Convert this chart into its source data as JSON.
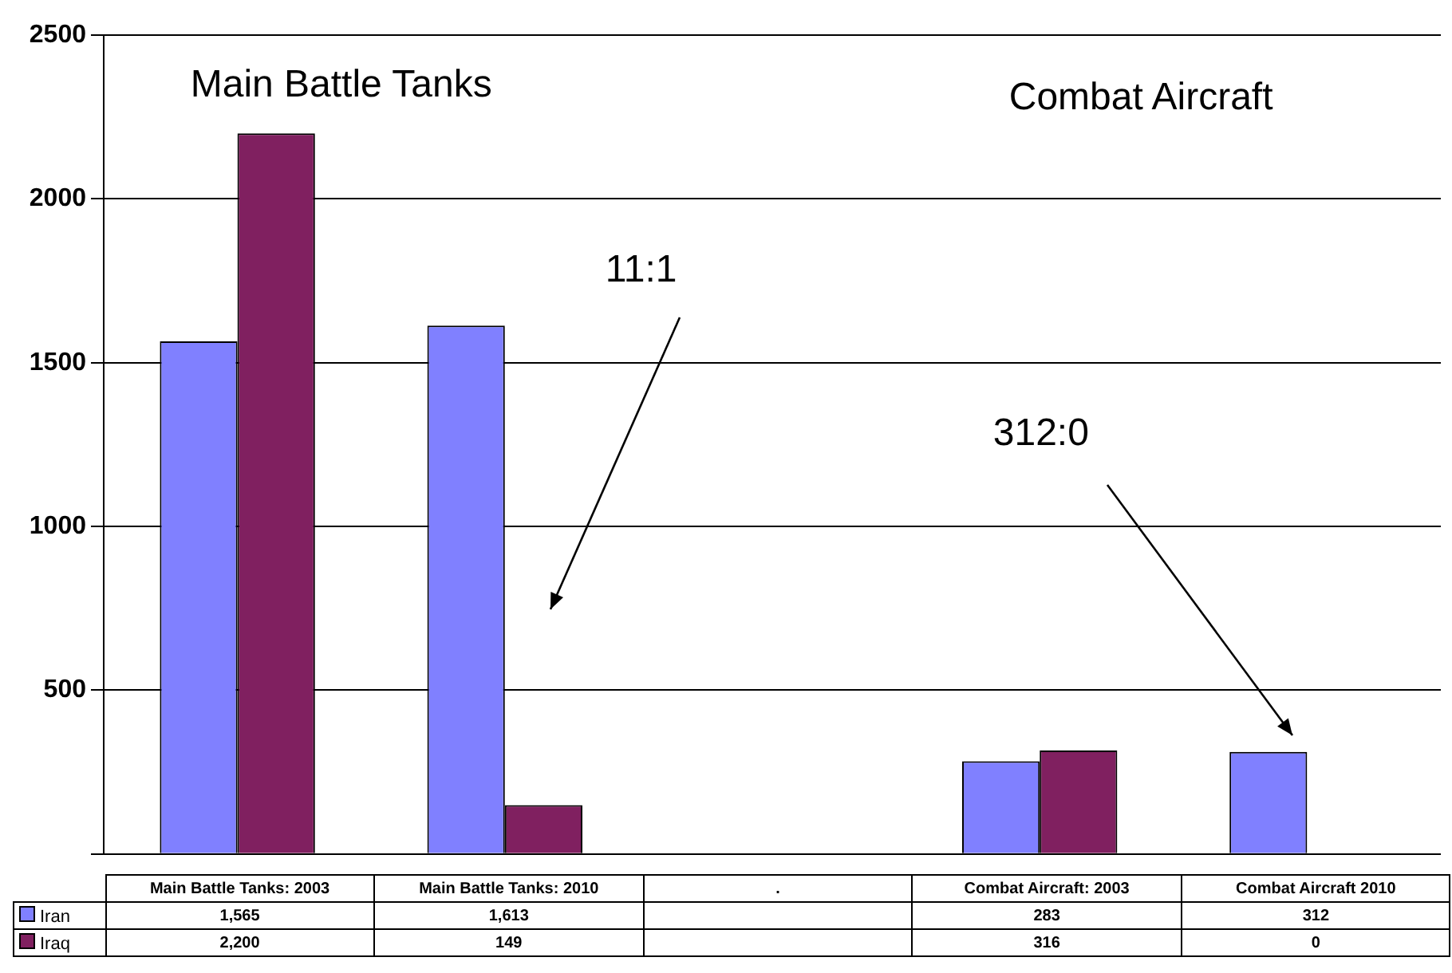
{
  "chart_data": {
    "type": "bar",
    "categories": [
      "Main Battle Tanks: 2003",
      "Main Battle Tanks: 2010",
      ".",
      "Combat Aircraft: 2003",
      "Combat Aircraft 2010"
    ],
    "series": [
      {
        "name": "Iran",
        "color": "#8080ff",
        "values": [
          1565,
          1613,
          null,
          283,
          312
        ],
        "value_labels": [
          "1,565",
          "1,613",
          null,
          "283",
          "312"
        ]
      },
      {
        "name": "Iraq",
        "color": "#802060",
        "values": [
          2200,
          149,
          null,
          316,
          0
        ],
        "value_labels": [
          "2,200",
          "149",
          null,
          "316",
          "0"
        ]
      }
    ],
    "ylim": [
      0,
      2500
    ],
    "yticks": [
      {
        "value": 0,
        "label": null
      },
      500,
      1000,
      1500,
      2000,
      2500
    ],
    "grid": "y",
    "legend": "bottom",
    "annotations": [
      "Main Battle Tanks",
      "Combat Aircraft",
      "11:1",
      "312:0"
    ]
  }
}
